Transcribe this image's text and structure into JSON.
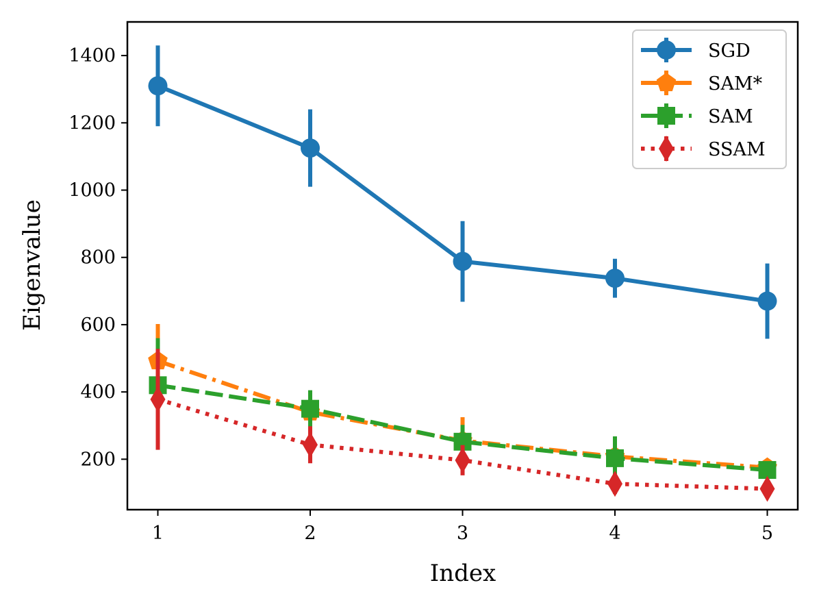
{
  "chart_data": {
    "type": "line",
    "title": "",
    "xlabel": "Index",
    "ylabel": "Eigenvalue",
    "xlim": [
      0.8,
      5.2
    ],
    "ylim": [
      50,
      1500
    ],
    "x": [
      1,
      2,
      3,
      4,
      5
    ],
    "xticks": [
      "1",
      "2",
      "3",
      "4",
      "5"
    ],
    "yticks": [
      200,
      400,
      600,
      800,
      1000,
      1200,
      1400
    ],
    "ytick_labels": [
      "200",
      "400",
      "600",
      "800",
      "1000",
      "1200",
      "1400"
    ],
    "legend_position": "top-right",
    "series": [
      {
        "name": "SGD",
        "color": "#1f77b4",
        "marker": "circle",
        "linestyle": "solid",
        "values": [
          1310,
          1125,
          788,
          738,
          670
        ],
        "errors": [
          120,
          115,
          120,
          58,
          112
        ]
      },
      {
        "name": "SAM*",
        "color": "#ff7f0e",
        "marker": "pentagon",
        "linestyle": "dashdot",
        "values": [
          492,
          340,
          255,
          208,
          175
        ],
        "errors": [
          110,
          50,
          70,
          30,
          20
        ]
      },
      {
        "name": "SAM",
        "color": "#2ca02c",
        "marker": "square",
        "linestyle": "dashed",
        "values": [
          420,
          350,
          252,
          203,
          168
        ],
        "errors": [
          140,
          55,
          50,
          65,
          25
        ]
      },
      {
        "name": "SSAM",
        "color": "#d62728",
        "marker": "diamond",
        "linestyle": "dotted",
        "values": [
          378,
          243,
          197,
          127,
          112
        ],
        "errors": [
          150,
          55,
          45,
          30,
          20
        ]
      }
    ]
  }
}
